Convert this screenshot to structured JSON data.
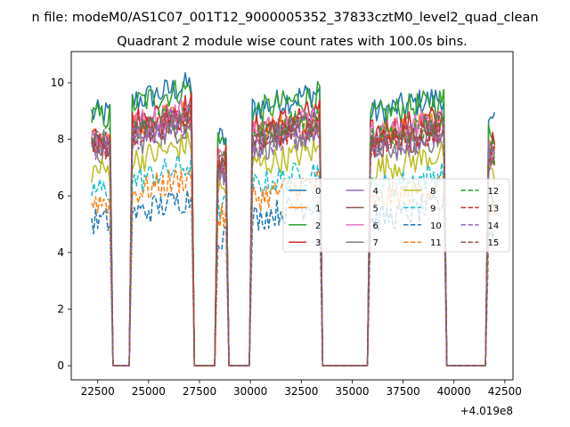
{
  "chart_data": {
    "type": "line",
    "suptitle": "n file: modeM0/AS1C07_001T12_9000005352_37833cztM0_level2_quad_clean",
    "title": "Quadrant 2 module wise count rates with 100.0s bins.",
    "xlabel": "",
    "ylabel": "",
    "x_offset_label": "+4.019e8",
    "xlim": [
      21200,
      42900
    ],
    "ylim": [
      -0.5,
      11.1
    ],
    "xticks": [
      22500,
      25000,
      27500,
      30000,
      32500,
      35000,
      37500,
      40000,
      42500
    ],
    "yticks": [
      0,
      2,
      4,
      6,
      8,
      10
    ],
    "grid": false,
    "legend_placement": "center-right, 4 columns",
    "series": [
      {
        "name": "0",
        "color": "#1f77b4",
        "dash": "solid",
        "level": 8.9
      },
      {
        "name": "1",
        "color": "#ff7f0e",
        "dash": "solid",
        "level": 8.0
      },
      {
        "name": "2",
        "color": "#2ca02c",
        "dash": "solid",
        "level": 8.8
      },
      {
        "name": "3",
        "color": "#d62728",
        "dash": "solid",
        "level": 8.2
      },
      {
        "name": "4",
        "color": "#9467bd",
        "dash": "solid",
        "level": 7.9
      },
      {
        "name": "5",
        "color": "#8c564b",
        "dash": "solid",
        "level": 7.7
      },
      {
        "name": "6",
        "color": "#e377c2",
        "dash": "solid",
        "level": 8.1
      },
      {
        "name": "7",
        "color": "#7f7f7f",
        "dash": "solid",
        "level": 7.5
      },
      {
        "name": "8",
        "color": "#bcbd22",
        "dash": "solid",
        "level": 6.9
      },
      {
        "name": "9",
        "color": "#17becf",
        "dash": "dashed",
        "level": 6.2
      },
      {
        "name": "10",
        "color": "#1f77b4",
        "dash": "dashed",
        "level": 5.1
      },
      {
        "name": "11",
        "color": "#ff7f0e",
        "dash": "dashed",
        "level": 5.8
      },
      {
        "name": "12",
        "color": "#2ca02c",
        "dash": "dashed",
        "level": 8.0
      },
      {
        "name": "13",
        "color": "#d62728",
        "dash": "dashed",
        "level": 7.8
      },
      {
        "name": "14",
        "color": "#9467bd",
        "dash": "dashed",
        "level": 7.6
      },
      {
        "name": "15",
        "color": "#8c564b",
        "dash": "dashed",
        "level": 7.9
      }
    ],
    "segments": [
      {
        "x_start": 22200,
        "x_end": 23100,
        "level_scale": 1.0
      },
      {
        "x_start": 24200,
        "x_end": 27100,
        "level_scale": 1.05
      },
      {
        "x_start": 28400,
        "x_end": 28800,
        "level_scale": 0.9
      },
      {
        "x_start": 30100,
        "x_end": 33400,
        "level_scale": 1.02
      },
      {
        "x_start": 35900,
        "x_end": 39500,
        "level_scale": 1.0
      },
      {
        "x_start": 41700,
        "x_end": 42000,
        "level_scale": 0.95
      }
    ]
  }
}
